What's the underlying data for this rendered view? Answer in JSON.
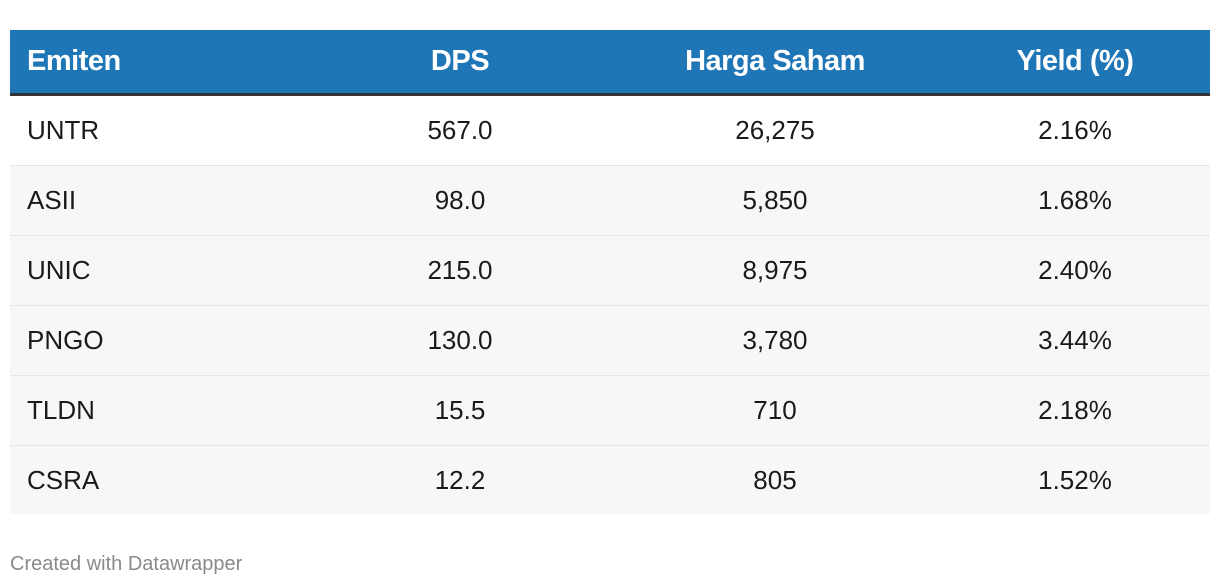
{
  "chart_data": {
    "type": "table",
    "columns": [
      "Emiten",
      "DPS",
      "Harga Saham",
      "Yield (%)"
    ],
    "rows": [
      [
        "UNTR",
        "567.0",
        "26,275",
        "2.16%"
      ],
      [
        "ASII",
        "98.0",
        "5,850",
        "1.68%"
      ],
      [
        "UNIC",
        "215.0",
        "8,975",
        "2.40%"
      ],
      [
        "PNGO",
        "130.0",
        "3,780",
        "3.44%"
      ],
      [
        "TLDN",
        "15.5",
        "710",
        "2.18%"
      ],
      [
        "CSRA",
        "12.2",
        "805",
        "1.52%"
      ]
    ],
    "header_color": "#1f76b7"
  },
  "footer": {
    "credit": "Created with Datawrapper"
  }
}
